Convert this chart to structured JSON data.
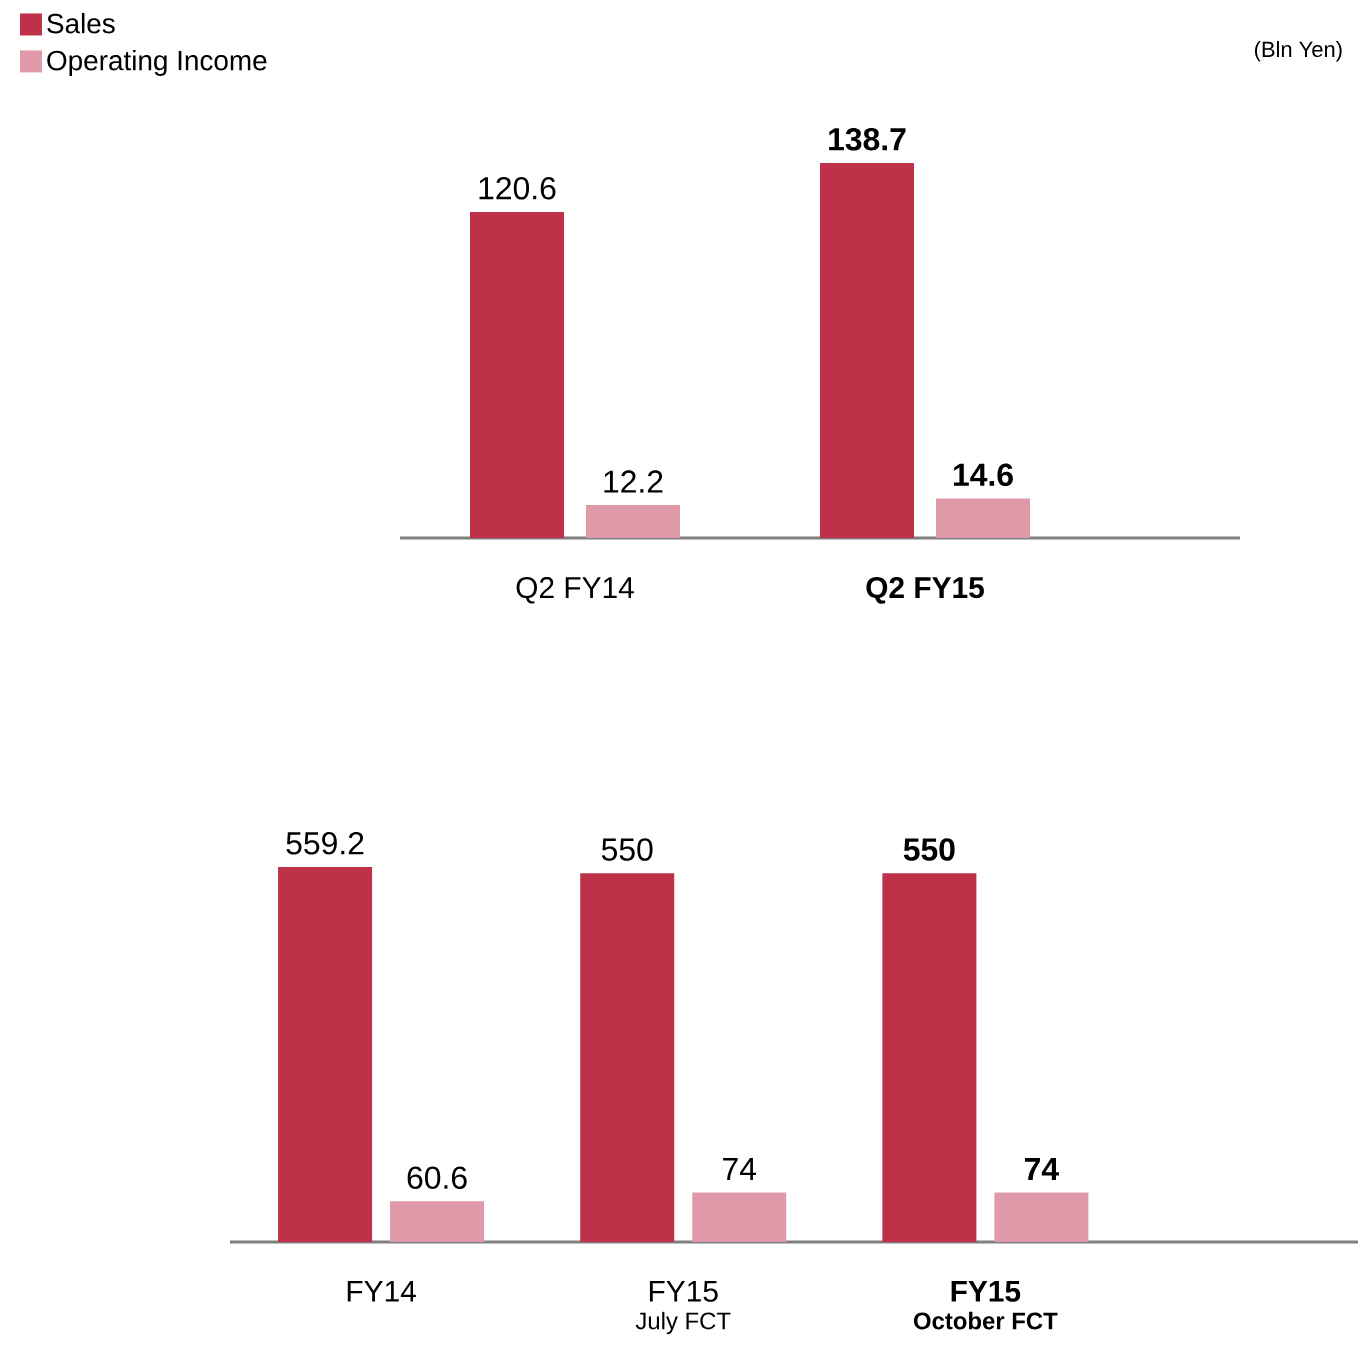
{
  "chart_data": [
    {
      "type": "bar",
      "ylabel": "(Bln Yen)",
      "categories": [
        "Q2 FY14",
        "**Q2 FY15**"
      ],
      "legend": "top left",
      "series": [
        {
          "name": "Sales",
          "color": "#bf3148",
          "values": [
            120.6,
            138.7
          ],
          "value_labels": [
            "120.6",
            "**138.7**"
          ]
        },
        {
          "name": "Operating Income",
          "color": "#df99a9",
          "values": [
            12.2,
            14.6
          ],
          "value_labels": [
            "12.2",
            "**14.6**"
          ]
        }
      ]
    },
    {
      "type": "bar",
      "categories": [
        "FY14",
        "FY15",
        "**FY15**"
      ],
      "annotations": [
        "July FCT",
        "**October FCT**"
      ],
      "series": [
        {
          "color": "#bf3148",
          "values": [
            559.2,
            550,
            550
          ],
          "value_labels": [
            "559.2",
            "550",
            "**550**"
          ]
        },
        {
          "color": "#df99a9",
          "values": [
            60.6,
            74,
            74
          ],
          "value_labels": [
            "60.6",
            "74",
            "**74**"
          ]
        }
      ]
    }
  ]
}
